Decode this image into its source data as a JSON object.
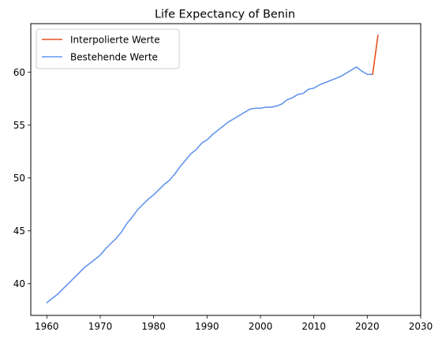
{
  "chart_data": {
    "type": "line",
    "title": "Life Expectancy of Benin",
    "xlabel": "",
    "ylabel": "",
    "xlim": [
      1957,
      2030
    ],
    "ylim": [
      37.0,
      64.6
    ],
    "xticks": [
      1960,
      1970,
      1980,
      1990,
      2000,
      2010,
      2020,
      2030
    ],
    "yticks": [
      40,
      45,
      50,
      55,
      60
    ],
    "grid": false,
    "legend_position": "top-left",
    "series": [
      {
        "name": "Interpolierte Werte",
        "color": "#e8501e",
        "x": [
          2021,
          2022
        ],
        "y": [
          59.8,
          63.5
        ]
      },
      {
        "name": "Bestehende Werte",
        "color": "#6495ed",
        "x": [
          1960,
          1961,
          1962,
          1963,
          1964,
          1965,
          1966,
          1967,
          1968,
          1969,
          1970,
          1971,
          1972,
          1973,
          1974,
          1975,
          1976,
          1977,
          1978,
          1979,
          1980,
          1981,
          1982,
          1983,
          1984,
          1985,
          1986,
          1987,
          1988,
          1989,
          1990,
          1991,
          1992,
          1993,
          1994,
          1995,
          1996,
          1997,
          1998,
          1999,
          2000,
          2001,
          2002,
          2003,
          2004,
          2005,
          2006,
          2007,
          2008,
          2009,
          2010,
          2011,
          2012,
          2013,
          2014,
          2015,
          2016,
          2017,
          2018,
          2019,
          2020,
          2021
        ],
        "y": [
          38.2,
          38.6,
          39.0,
          39.5,
          40.0,
          40.5,
          41.0,
          41.5,
          41.9,
          42.3,
          42.7,
          43.3,
          43.8,
          44.3,
          44.9,
          45.7,
          46.3,
          47.0,
          47.5,
          48.0,
          48.4,
          48.9,
          49.4,
          49.8,
          50.4,
          51.1,
          51.7,
          52.3,
          52.7,
          53.3,
          53.6,
          54.1,
          54.5,
          54.9,
          55.3,
          55.6,
          55.9,
          56.2,
          56.5,
          56.6,
          56.6,
          56.7,
          56.7,
          56.8,
          57.0,
          57.4,
          57.6,
          57.9,
          58.0,
          58.4,
          58.5,
          58.8,
          59.0,
          59.2,
          59.4,
          59.6,
          59.9,
          60.2,
          60.5,
          60.1,
          59.8,
          59.8
        ]
      }
    ]
  }
}
